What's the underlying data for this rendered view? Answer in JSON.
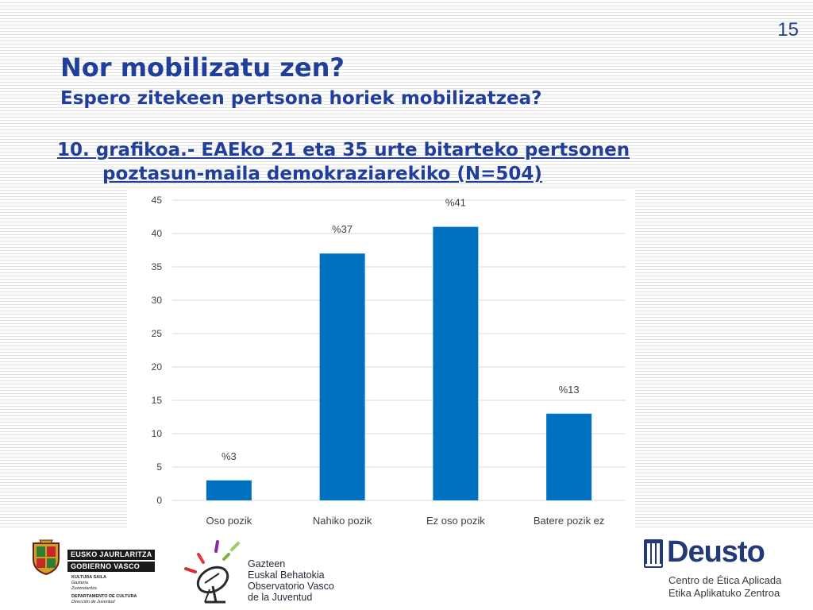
{
  "page_number": "15",
  "title": "Nor mobilizatu zen?",
  "subtitle": "Espero zitekeen pertsona horiek mobilizatzea?",
  "chart_heading": {
    "line1": "10. grafikoa.- EAEko 21 eta 35 urte bitarteko pertsonen",
    "line2": "poztasun-maila demokraziarekiko (N=504)"
  },
  "chart_data": {
    "type": "bar",
    "categories": [
      "Oso pozik",
      "Nahiko pozik",
      "Ez oso pozik",
      "Batere pozik ez"
    ],
    "values": [
      3,
      37,
      41,
      13
    ],
    "data_labels": [
      "%3",
      "%37",
      "%41",
      "%13"
    ],
    "ylim": [
      0,
      45
    ],
    "yticks": [
      0,
      5,
      10,
      15,
      20,
      25,
      30,
      35,
      40,
      45
    ],
    "grid": true,
    "legend": "none",
    "bar_color": "#0070c0"
  },
  "footer": {
    "gobierno": {
      "line1": "EUSKO JAURLARITZA",
      "line2": "GOBIERNO VASCO",
      "dept1": "KULTURA SAILA",
      "dept2": "Gazteria",
      "dept3": "Zuzendaritza",
      "dept4": "DEPARTAMENTO DE CULTURA",
      "dept5": "Dirección de Juventud"
    },
    "gazteen": {
      "line1": "Gazteen",
      "line2": "Euskal Behatokia",
      "line3": "Observatorio Vasco",
      "line4": "de la Juventud"
    },
    "deusto": {
      "name": "Deusto",
      "line1": "Centro de Ética Aplicada",
      "line2": "Etika Aplikatuko Zentroa"
    }
  },
  "colors": {
    "heading": "#1f3f9a",
    "bar": "#0070c0",
    "deusto": "#243a78"
  }
}
